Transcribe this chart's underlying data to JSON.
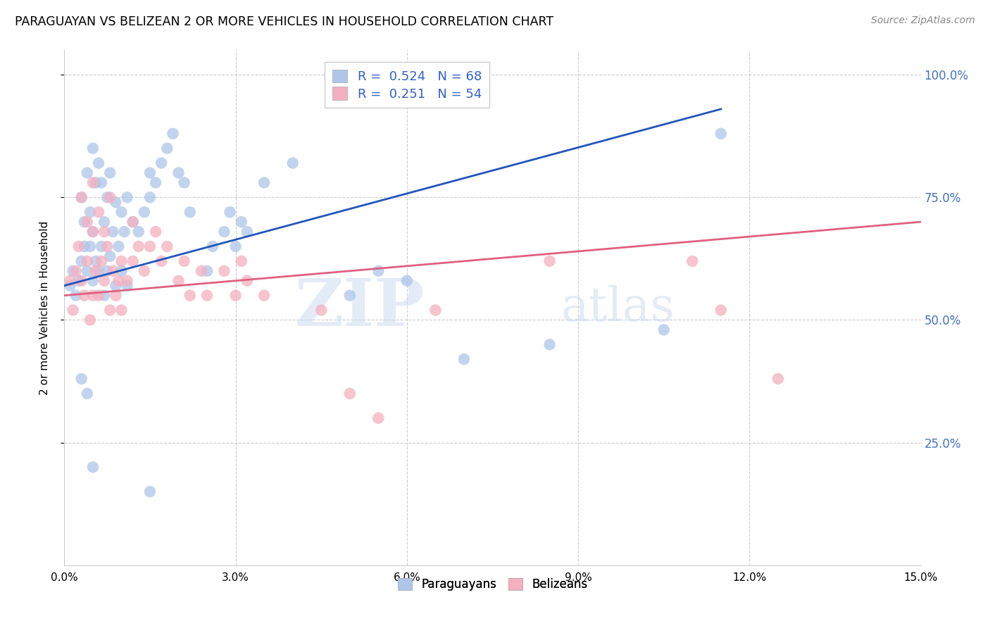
{
  "title": "PARAGUAYAN VS BELIZEAN 2 OR MORE VEHICLES IN HOUSEHOLD CORRELATION CHART",
  "source": "Source: ZipAtlas.com",
  "ylabel": "2 or more Vehicles in Household",
  "xlim": [
    0.0,
    15.0
  ],
  "ylim": [
    0.0,
    105.0
  ],
  "yticks_right": [
    25.0,
    50.0,
    75.0,
    100.0
  ],
  "ytick_labels_right": [
    "25.0%",
    "50.0%",
    "75.0%",
    "100.0%"
  ],
  "xticks": [
    0.0,
    3.0,
    6.0,
    9.0,
    12.0,
    15.0
  ],
  "xtick_labels": [
    "0.0%",
    "3.0%",
    "6.0%",
    "9.0%",
    "12.0%",
    "15.0%"
  ],
  "legend_blue_label": "R =  0.524   N = 68",
  "legend_pink_label": "R =  0.251   N = 54",
  "watermark_zip": "ZIP",
  "watermark_atlas": "atlas",
  "paraguayan_color": "#aec6e8",
  "belizean_color": "#f4afc0",
  "blue_line_color": "#2255bb",
  "pink_line_color": "#e06080",
  "right_axis_color": "#4472c4",
  "blue_line_x0": 0.0,
  "blue_line_y0": 57.0,
  "blue_line_x1": 11.5,
  "blue_line_y1": 93.0,
  "pink_line_x0": 0.0,
  "pink_line_y0": 55.0,
  "pink_line_x1": 15.0,
  "pink_line_y1": 70.0,
  "par_x": [
    0.1,
    0.15,
    0.2,
    0.25,
    0.3,
    0.3,
    0.35,
    0.35,
    0.4,
    0.4,
    0.45,
    0.45,
    0.5,
    0.5,
    0.5,
    0.55,
    0.55,
    0.6,
    0.6,
    0.65,
    0.65,
    0.7,
    0.7,
    0.75,
    0.75,
    0.8,
    0.8,
    0.85,
    0.9,
    0.9,
    0.95,
    1.0,
    1.0,
    1.05,
    1.1,
    1.1,
    1.2,
    1.3,
    1.4,
    1.5,
    1.5,
    1.6,
    1.7,
    1.8,
    1.9,
    2.0,
    2.1,
    2.2,
    2.5,
    2.6,
    2.8,
    2.9,
    3.0,
    3.1,
    3.2,
    3.5,
    4.0,
    5.0,
    5.5,
    6.0,
    7.0,
    8.5,
    10.5,
    11.5,
    0.3,
    0.4,
    1.5,
    0.5
  ],
  "par_y": [
    57.0,
    60.0,
    55.0,
    58.0,
    62.0,
    75.0,
    65.0,
    70.0,
    60.0,
    80.0,
    65.0,
    72.0,
    58.0,
    68.0,
    85.0,
    62.0,
    78.0,
    60.0,
    82.0,
    65.0,
    78.0,
    55.0,
    70.0,
    60.0,
    75.0,
    63.0,
    80.0,
    68.0,
    57.0,
    74.0,
    65.0,
    60.0,
    72.0,
    68.0,
    57.0,
    75.0,
    70.0,
    68.0,
    72.0,
    75.0,
    80.0,
    78.0,
    82.0,
    85.0,
    88.0,
    80.0,
    78.0,
    72.0,
    60.0,
    65.0,
    68.0,
    72.0,
    65.0,
    70.0,
    68.0,
    78.0,
    82.0,
    55.0,
    60.0,
    58.0,
    42.0,
    45.0,
    48.0,
    88.0,
    38.0,
    35.0,
    15.0,
    20.0
  ],
  "bel_x": [
    0.1,
    0.15,
    0.2,
    0.25,
    0.3,
    0.35,
    0.4,
    0.45,
    0.5,
    0.5,
    0.55,
    0.6,
    0.65,
    0.7,
    0.75,
    0.8,
    0.85,
    0.9,
    0.95,
    1.0,
    1.0,
    1.1,
    1.2,
    1.3,
    1.4,
    1.5,
    1.6,
    1.7,
    1.8,
    2.0,
    2.1,
    2.2,
    2.4,
    2.5,
    2.8,
    3.0,
    3.1,
    3.2,
    3.5,
    4.5,
    5.0,
    6.5,
    8.5,
    11.0,
    11.5,
    12.5,
    0.3,
    0.4,
    0.6,
    0.7,
    0.5,
    0.8,
    1.2,
    5.5
  ],
  "bel_y": [
    58.0,
    52.0,
    60.0,
    65.0,
    58.0,
    55.0,
    62.0,
    50.0,
    55.0,
    68.0,
    60.0,
    55.0,
    62.0,
    58.0,
    65.0,
    52.0,
    60.0,
    55.0,
    58.0,
    52.0,
    62.0,
    58.0,
    62.0,
    65.0,
    60.0,
    65.0,
    68.0,
    62.0,
    65.0,
    58.0,
    62.0,
    55.0,
    60.0,
    55.0,
    60.0,
    55.0,
    62.0,
    58.0,
    55.0,
    52.0,
    35.0,
    52.0,
    62.0,
    62.0,
    52.0,
    38.0,
    75.0,
    70.0,
    72.0,
    68.0,
    78.0,
    75.0,
    70.0,
    30.0
  ]
}
